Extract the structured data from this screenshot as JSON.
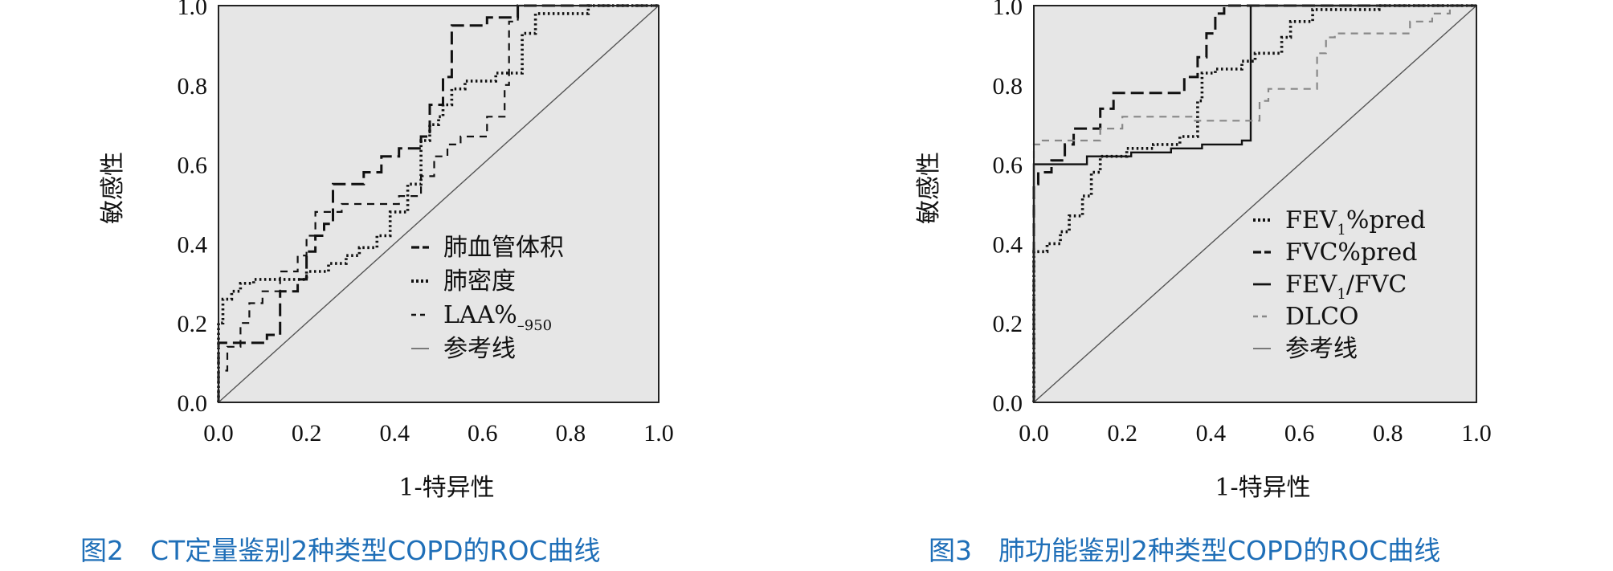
{
  "chart_data": [
    {
      "type": "line",
      "caption": "图2　CT定量鉴别2种类型COPD的ROC曲线",
      "xlabel": "1-特异性",
      "ylabel": "敏感性",
      "xlim": [
        0,
        1
      ],
      "ylim": [
        0,
        1
      ],
      "xticks": [
        "0.0",
        "0.2",
        "0.4",
        "0.6",
        "0.8",
        "1.0"
      ],
      "yticks": [
        "0.0",
        "0.2",
        "0.4",
        "0.6",
        "0.8",
        "1.0"
      ],
      "grid": false,
      "legend_position": "center-right",
      "series": [
        {
          "name": "肺血管体积",
          "style": "longdash",
          "color": "#111111",
          "points": [
            [
              0,
              0
            ],
            [
              0,
              0.15
            ],
            [
              0.11,
              0.15
            ],
            [
              0.11,
              0.17
            ],
            [
              0.14,
              0.17
            ],
            [
              0.14,
              0.28
            ],
            [
              0.18,
              0.28
            ],
            [
              0.18,
              0.31
            ],
            [
              0.2,
              0.31
            ],
            [
              0.2,
              0.38
            ],
            [
              0.22,
              0.38
            ],
            [
              0.22,
              0.42
            ],
            [
              0.24,
              0.42
            ],
            [
              0.24,
              0.45
            ],
            [
              0.26,
              0.45
            ],
            [
              0.26,
              0.55
            ],
            [
              0.33,
              0.55
            ],
            [
              0.33,
              0.58
            ],
            [
              0.37,
              0.58
            ],
            [
              0.37,
              0.62
            ],
            [
              0.41,
              0.62
            ],
            [
              0.41,
              0.64
            ],
            [
              0.46,
              0.64
            ],
            [
              0.46,
              0.67
            ],
            [
              0.48,
              0.67
            ],
            [
              0.48,
              0.75
            ],
            [
              0.51,
              0.75
            ],
            [
              0.51,
              0.82
            ],
            [
              0.53,
              0.82
            ],
            [
              0.53,
              0.95
            ],
            [
              0.61,
              0.95
            ],
            [
              0.61,
              0.97
            ],
            [
              0.68,
              0.97
            ],
            [
              0.68,
              1.0
            ],
            [
              1.0,
              1.0
            ]
          ]
        },
        {
          "name": "肺密度",
          "style": "dotted",
          "color": "#111111",
          "points": [
            [
              0,
              0
            ],
            [
              0,
              0.2
            ],
            [
              0.01,
              0.2
            ],
            [
              0.01,
              0.26
            ],
            [
              0.03,
              0.26
            ],
            [
              0.03,
              0.28
            ],
            [
              0.05,
              0.28
            ],
            [
              0.05,
              0.3
            ],
            [
              0.08,
              0.3
            ],
            [
              0.08,
              0.31
            ],
            [
              0.2,
              0.31
            ],
            [
              0.2,
              0.33
            ],
            [
              0.25,
              0.33
            ],
            [
              0.25,
              0.35
            ],
            [
              0.29,
              0.35
            ],
            [
              0.29,
              0.37
            ],
            [
              0.32,
              0.37
            ],
            [
              0.32,
              0.39
            ],
            [
              0.36,
              0.39
            ],
            [
              0.36,
              0.42
            ],
            [
              0.39,
              0.42
            ],
            [
              0.39,
              0.48
            ],
            [
              0.43,
              0.48
            ],
            [
              0.43,
              0.55
            ],
            [
              0.46,
              0.55
            ],
            [
              0.46,
              0.66
            ],
            [
              0.48,
              0.66
            ],
            [
              0.48,
              0.7
            ],
            [
              0.5,
              0.7
            ],
            [
              0.5,
              0.72
            ],
            [
              0.51,
              0.72
            ],
            [
              0.51,
              0.75
            ],
            [
              0.53,
              0.75
            ],
            [
              0.53,
              0.79
            ],
            [
              0.56,
              0.79
            ],
            [
              0.56,
              0.81
            ],
            [
              0.63,
              0.81
            ],
            [
              0.63,
              0.83
            ],
            [
              0.69,
              0.83
            ],
            [
              0.69,
              0.93
            ],
            [
              0.72,
              0.93
            ],
            [
              0.72,
              0.98
            ],
            [
              0.84,
              0.98
            ],
            [
              0.84,
              1.0
            ],
            [
              1.0,
              1.0
            ]
          ]
        },
        {
          "name": "LAA%-950",
          "style": "dashed",
          "color": "#111111",
          "points": [
            [
              0,
              0
            ],
            [
              0,
              0.08
            ],
            [
              0.02,
              0.08
            ],
            [
              0.02,
              0.14
            ],
            [
              0.05,
              0.14
            ],
            [
              0.05,
              0.2
            ],
            [
              0.07,
              0.2
            ],
            [
              0.07,
              0.25
            ],
            [
              0.1,
              0.25
            ],
            [
              0.1,
              0.28
            ],
            [
              0.14,
              0.28
            ],
            [
              0.14,
              0.33
            ],
            [
              0.18,
              0.33
            ],
            [
              0.18,
              0.37
            ],
            [
              0.2,
              0.37
            ],
            [
              0.2,
              0.42
            ],
            [
              0.22,
              0.42
            ],
            [
              0.22,
              0.48
            ],
            [
              0.28,
              0.48
            ],
            [
              0.28,
              0.5
            ],
            [
              0.41,
              0.5
            ],
            [
              0.41,
              0.52
            ],
            [
              0.46,
              0.52
            ],
            [
              0.46,
              0.57
            ],
            [
              0.49,
              0.57
            ],
            [
              0.49,
              0.62
            ],
            [
              0.52,
              0.62
            ],
            [
              0.52,
              0.65
            ],
            [
              0.55,
              0.65
            ],
            [
              0.55,
              0.67
            ],
            [
              0.61,
              0.67
            ],
            [
              0.61,
              0.72
            ],
            [
              0.65,
              0.72
            ],
            [
              0.65,
              0.8
            ],
            [
              0.66,
              0.8
            ],
            [
              0.66,
              0.96
            ],
            [
              0.68,
              0.96
            ],
            [
              0.68,
              1.0
            ],
            [
              1.0,
              1.0
            ]
          ]
        },
        {
          "name": "参考线",
          "style": "solid",
          "color": "#555555",
          "points": [
            [
              0,
              0
            ],
            [
              1,
              1
            ]
          ]
        }
      ]
    },
    {
      "type": "line",
      "caption": "图3　肺功能鉴别2种类型COPD的ROC曲线",
      "xlabel": "1-特异性",
      "ylabel": "敏感性",
      "xlim": [
        0,
        1
      ],
      "ylim": [
        0,
        1
      ],
      "xticks": [
        "0.0",
        "0.2",
        "0.4",
        "0.6",
        "0.8",
        "1.0"
      ],
      "yticks": [
        "0.0",
        "0.2",
        "0.4",
        "0.6",
        "0.8",
        "1.0"
      ],
      "grid": false,
      "legend_position": "center-right",
      "series": [
        {
          "name": "FEV1%pred",
          "style": "dotted",
          "color": "#111111",
          "points": [
            [
              0,
              0
            ],
            [
              0,
              0.38
            ],
            [
              0.03,
              0.38
            ],
            [
              0.03,
              0.4
            ],
            [
              0.06,
              0.4
            ],
            [
              0.06,
              0.43
            ],
            [
              0.08,
              0.43
            ],
            [
              0.08,
              0.47
            ],
            [
              0.11,
              0.47
            ],
            [
              0.11,
              0.52
            ],
            [
              0.13,
              0.52
            ],
            [
              0.13,
              0.58
            ],
            [
              0.15,
              0.58
            ],
            [
              0.15,
              0.62
            ],
            [
              0.21,
              0.62
            ],
            [
              0.21,
              0.64
            ],
            [
              0.27,
              0.64
            ],
            [
              0.27,
              0.65
            ],
            [
              0.33,
              0.65
            ],
            [
              0.33,
              0.67
            ],
            [
              0.37,
              0.67
            ],
            [
              0.37,
              0.76
            ],
            [
              0.38,
              0.76
            ],
            [
              0.38,
              0.83
            ],
            [
              0.41,
              0.83
            ],
            [
              0.41,
              0.84
            ],
            [
              0.47,
              0.84
            ],
            [
              0.47,
              0.86
            ],
            [
              0.5,
              0.86
            ],
            [
              0.5,
              0.88
            ],
            [
              0.56,
              0.88
            ],
            [
              0.56,
              0.92
            ],
            [
              0.58,
              0.92
            ],
            [
              0.58,
              0.96
            ],
            [
              0.63,
              0.96
            ],
            [
              0.63,
              0.99
            ],
            [
              0.78,
              0.99
            ],
            [
              0.78,
              1.0
            ],
            [
              1.0,
              1.0
            ]
          ]
        },
        {
          "name": "FVC%pred",
          "style": "longdash",
          "color": "#111111",
          "points": [
            [
              0,
              0
            ],
            [
              0,
              0.55
            ],
            [
              0.01,
              0.55
            ],
            [
              0.01,
              0.58
            ],
            [
              0.04,
              0.58
            ],
            [
              0.04,
              0.61
            ],
            [
              0.07,
              0.61
            ],
            [
              0.07,
              0.65
            ],
            [
              0.09,
              0.65
            ],
            [
              0.09,
              0.69
            ],
            [
              0.15,
              0.69
            ],
            [
              0.15,
              0.74
            ],
            [
              0.18,
              0.74
            ],
            [
              0.18,
              0.78
            ],
            [
              0.34,
              0.78
            ],
            [
              0.34,
              0.82
            ],
            [
              0.37,
              0.82
            ],
            [
              0.37,
              0.87
            ],
            [
              0.39,
              0.87
            ],
            [
              0.39,
              0.93
            ],
            [
              0.41,
              0.93
            ],
            [
              0.41,
              0.98
            ],
            [
              0.43,
              0.98
            ],
            [
              0.43,
              1.0
            ],
            [
              1.0,
              1.0
            ]
          ]
        },
        {
          "name": "FEV1/FVC",
          "style": "solid",
          "color": "#111111",
          "points": [
            [
              0,
              0
            ],
            [
              0,
              0.6
            ],
            [
              0.12,
              0.6
            ],
            [
              0.12,
              0.62
            ],
            [
              0.22,
              0.62
            ],
            [
              0.22,
              0.63
            ],
            [
              0.31,
              0.63
            ],
            [
              0.31,
              0.64
            ],
            [
              0.38,
              0.64
            ],
            [
              0.38,
              0.65
            ],
            [
              0.47,
              0.65
            ],
            [
              0.47,
              0.66
            ],
            [
              0.49,
              0.66
            ],
            [
              0.49,
              1.0
            ],
            [
              1.0,
              1.0
            ]
          ]
        },
        {
          "name": "DLCO",
          "style": "dashed",
          "color": "#888888",
          "points": [
            [
              0,
              0
            ],
            [
              0,
              0.65
            ],
            [
              0.02,
              0.65
            ],
            [
              0.02,
              0.66
            ],
            [
              0.15,
              0.66
            ],
            [
              0.15,
              0.69
            ],
            [
              0.2,
              0.69
            ],
            [
              0.2,
              0.72
            ],
            [
              0.36,
              0.72
            ],
            [
              0.36,
              0.71
            ],
            [
              0.51,
              0.71
            ],
            [
              0.51,
              0.76
            ],
            [
              0.53,
              0.76
            ],
            [
              0.53,
              0.79
            ],
            [
              0.64,
              0.79
            ],
            [
              0.64,
              0.88
            ],
            [
              0.66,
              0.88
            ],
            [
              0.66,
              0.92
            ],
            [
              0.68,
              0.92
            ],
            [
              0.68,
              0.93
            ],
            [
              0.85,
              0.93
            ],
            [
              0.85,
              0.96
            ],
            [
              0.9,
              0.96
            ],
            [
              0.9,
              0.98
            ],
            [
              0.94,
              0.98
            ],
            [
              0.94,
              1.0
            ],
            [
              1.0,
              1.0
            ]
          ]
        },
        {
          "name": "参考线",
          "style": "solid",
          "color": "#555555",
          "points": [
            [
              0,
              0
            ],
            [
              1,
              1
            ]
          ]
        }
      ]
    }
  ]
}
